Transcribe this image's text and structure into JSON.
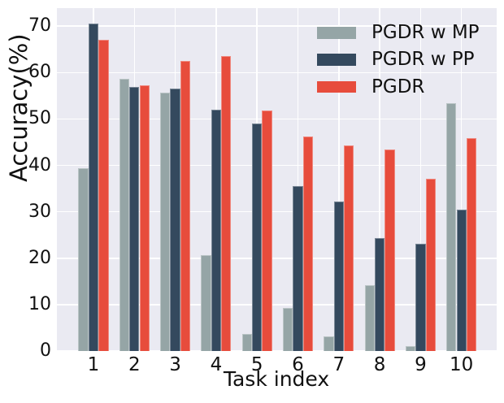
{
  "chart_data": {
    "type": "bar",
    "title": "",
    "xlabel": "Task index",
    "ylabel": "Accuracy(%)",
    "categories": [
      "1",
      "2",
      "3",
      "4",
      "5",
      "6",
      "7",
      "8",
      "9",
      "10"
    ],
    "series": [
      {
        "name": "PGDR w MP",
        "color": "#95a5a6",
        "values": [
          39.4,
          58.7,
          55.7,
          20.6,
          3.6,
          9.2,
          3.2,
          14.1,
          1.0,
          53.4
        ]
      },
      {
        "name": "PGDR w PP",
        "color": "#34495e",
        "values": [
          70.5,
          57.0,
          56.5,
          52.0,
          49.1,
          35.5,
          32.3,
          24.4,
          23.1,
          30.4
        ]
      },
      {
        "name": "PGDR",
        "color": "#e74c3c",
        "values": [
          67.0,
          57.2,
          62.6,
          63.5,
          51.9,
          46.3,
          44.3,
          43.4,
          37.1,
          45.9
        ]
      }
    ],
    "ylim": [
      0,
      73.9
    ],
    "yticks": [
      0,
      10,
      20,
      30,
      40,
      50,
      60,
      70
    ],
    "grid": true,
    "legend_position": "upper right",
    "plot_bg": "#eaeaf2",
    "grid_color": "#ffffff"
  }
}
